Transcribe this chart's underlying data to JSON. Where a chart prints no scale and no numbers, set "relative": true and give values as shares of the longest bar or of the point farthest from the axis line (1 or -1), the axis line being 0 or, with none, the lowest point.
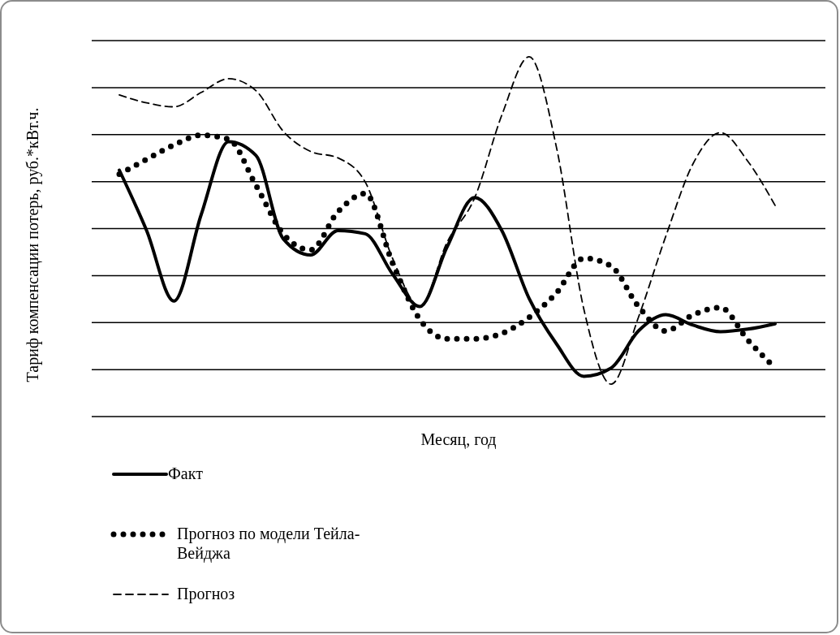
{
  "chart_data": {
    "type": "line",
    "relative": true,
    "xlabel": "Месяц, год",
    "ylabel": "Тариф компенсации потерь, руб.*кВт.ч.",
    "grid": "y",
    "legend": "bottom",
    "categories": [
      null,
      null,
      null,
      null,
      null,
      null,
      null,
      null,
      null,
      null,
      null,
      null,
      null,
      null,
      null,
      null,
      null,
      null,
      null,
      null,
      null,
      null,
      null,
      null,
      null
    ],
    "series": [
      {
        "name": "Факт",
        "color": "#000000",
        "line_style": "solid",
        "values": [
          0.685,
          0.517,
          0.321,
          0.562,
          0.764,
          0.726,
          0.494,
          0.449,
          0.517,
          0.508,
          0.396,
          0.306,
          0.472,
          0.609,
          0.517,
          0.328,
          0.202,
          0.112,
          0.135,
          0.238,
          0.283,
          0.254,
          0.236,
          0.243,
          0.258
        ]
      },
      {
        "name": "Прогноз по модели Тейла-Вейджа",
        "color": "#000000",
        "line_style": "dotted",
        "values": [
          0.674,
          0.715,
          0.755,
          0.782,
          0.771,
          0.643,
          0.508,
          0.463,
          0.569,
          0.62,
          0.427,
          0.27,
          0.216,
          0.216,
          0.231,
          0.276,
          0.344,
          0.44,
          0.418,
          0.306,
          0.238,
          0.283,
          0.303,
          0.213,
          0.135
        ]
      },
      {
        "name": "Прогноз",
        "color": "#000000",
        "line_style": "dashed",
        "values": [
          0.894,
          0.872,
          0.861,
          0.901,
          0.939,
          0.906,
          0.793,
          0.737,
          0.719,
          0.652,
          0.44,
          0.306,
          0.485,
          0.607,
          0.838,
          1,
          0.748,
          0.299,
          0.09,
          0.276,
          0.501,
          0.703,
          0.789,
          0.71,
          0.587
        ]
      }
    ]
  }
}
